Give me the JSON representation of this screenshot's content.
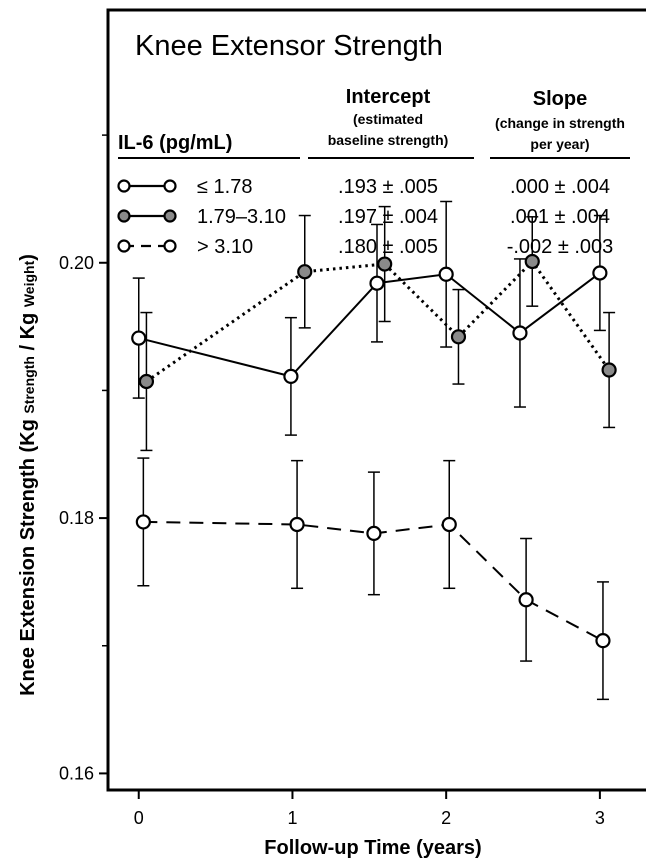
{
  "chart_data": {
    "type": "line",
    "title": "Knee Extensor Strength",
    "xlabel": "Follow-up Time (years)",
    "ylabel": {
      "main": "Knee Extension Strength (Kg",
      "sub1": "Strength",
      "mid": "/ Kg",
      "sub2": "Weight",
      "end": ")"
    },
    "xlim": [
      -0.2,
      3.3
    ],
    "ylim": [
      0.1587,
      0.2198
    ],
    "x_ticks": [
      0,
      1,
      2,
      3
    ],
    "x_tick_labels": [
      "0",
      "1",
      "2",
      "3"
    ],
    "y_ticks": [
      0.16,
      0.18,
      0.2
    ],
    "y_tick_labels": [
      "0.16",
      "0.18",
      "0.20"
    ],
    "grid": false,
    "legend": {
      "placement": "top-left",
      "header_group": "IL-6 (pg/mL)",
      "header_intercept": "Intercept",
      "header_intercept_sub1": "(estimated",
      "header_intercept_sub2": "baseline strength)",
      "header_slope": "Slope",
      "header_slope_sub1": "(change in strength",
      "header_slope_sub2": "per year)",
      "rows": [
        {
          "group": "≤ 1.78",
          "intercept": ".193 ± .005",
          "slope": ".000 ± .004"
        },
        {
          "group": "1.79–3.10",
          "intercept": ".197 ± .004",
          "slope": ".001 ± .004"
        },
        {
          "group": "> 3.10",
          "intercept": ".180 ± .005",
          "slope": "-.002 ± .003"
        }
      ]
    },
    "series": [
      {
        "name": "≤ 1.78",
        "marker": "open-circle",
        "line": "solid",
        "fill": "#ffffff",
        "x": [
          0.0,
          0.99,
          1.55,
          2.0,
          2.48,
          3.0
        ],
        "y": [
          0.1941,
          0.1911,
          0.1984,
          0.1991,
          0.1945,
          0.1992
        ],
        "err": [
          0.0047,
          0.0046,
          0.0046,
          0.0057,
          0.0058,
          0.0045
        ]
      },
      {
        "name": "1.79–3.10",
        "marker": "gray-circle",
        "line": "dotted",
        "fill": "#8a8a8a",
        "x": [
          0.05,
          1.08,
          1.6,
          2.08,
          2.56,
          3.06
        ],
        "y": [
          0.1907,
          0.1993,
          0.1999,
          0.1942,
          0.2001,
          0.1916
        ],
        "err": [
          0.0054,
          0.0044,
          0.0045,
          0.0037,
          0.0035,
          0.0045
        ]
      },
      {
        "name": "> 3.10",
        "marker": "open-circle",
        "line": "dashed",
        "fill": "#ffffff",
        "x": [
          0.03,
          1.03,
          1.53,
          2.02,
          2.52,
          3.02
        ],
        "y": [
          0.1797,
          0.1795,
          0.1788,
          0.1795,
          0.1736,
          0.1704
        ],
        "err": [
          0.005,
          0.005,
          0.0048,
          0.005,
          0.0048,
          0.0046
        ]
      }
    ]
  }
}
